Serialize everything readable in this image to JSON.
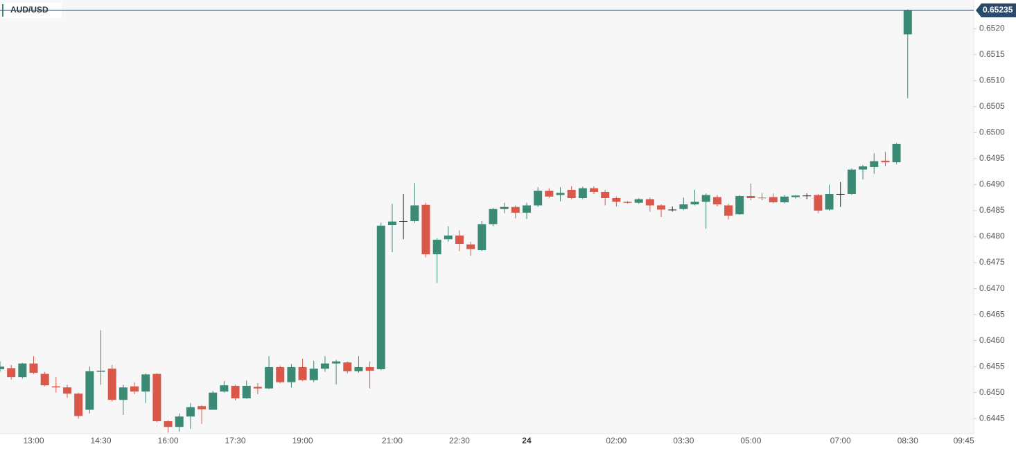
{
  "chart_data": {
    "type": "candlestick",
    "symbol": "AUD/USD",
    "last_price": 0.65235,
    "up_color": "#3a8a76",
    "down_color": "#d9584a",
    "doji_color": "#222222",
    "last_color": "#2b4a6b",
    "ylim": [
      0.64421,
      0.65255
    ],
    "yticks": [
      0.6445,
      {
        "value": 0.645,
        "label": "0.6450"
      },
      0.6455,
      {
        "value": 0.646,
        "label": "0.6460"
      },
      0.6465,
      {
        "value": 0.647,
        "label": "0.6470"
      },
      0.6475,
      {
        "value": 0.648,
        "label": "0.6480"
      },
      0.6485,
      {
        "value": 0.649,
        "label": "0.6490"
      },
      0.6495,
      {
        "value": 0.65,
        "label": "0.6500"
      },
      0.6505,
      {
        "value": 0.651,
        "label": "0.6510"
      },
      0.6515,
      {
        "value": 0.652,
        "label": "0.6520"
      }
    ],
    "categories": [
      null,
      null,
      null,
      "13:00",
      null,
      null,
      null,
      null,
      null,
      "14:30",
      null,
      null,
      null,
      null,
      null,
      "16:00",
      null,
      null,
      null,
      null,
      null,
      "17:30",
      null,
      null,
      null,
      null,
      null,
      "19:00",
      null,
      null,
      null,
      null,
      null,
      null,
      null,
      "21:00",
      null,
      null,
      null,
      null,
      null,
      "22:30",
      null,
      null,
      null,
      null,
      null,
      "24",
      null,
      null,
      null,
      null,
      null,
      null,
      null,
      "02:00",
      null,
      null,
      null,
      null,
      null,
      "03:30",
      null,
      null,
      null,
      null,
      null,
      "05:00",
      null,
      null,
      null,
      null,
      null,
      null,
      null,
      "07:00",
      null,
      null,
      null,
      null,
      null,
      "08:30",
      null,
      null,
      null,
      null,
      "09:45"
    ],
    "open": [
      0.64545,
      0.64547,
      0.6453,
      0.64556,
      0.64536,
      0.64512,
      0.6451,
      0.64498,
      0.64467,
      0.6454,
      0.64546,
      0.64486,
      0.64512,
      0.64502,
      0.64536,
      0.64445,
      0.64434,
      0.64454,
      0.64474,
      0.64467,
      0.64502,
      0.64513,
      0.64489,
      0.64511,
      0.64508,
      0.64549,
      0.6452,
      0.64549,
      0.64524,
      0.64546,
      0.64556,
      0.64558,
      0.64541,
      0.64549,
      0.64545,
      0.64822,
      0.6483,
      0.6483,
      0.64861,
      0.64766,
      0.64795,
      0.64802,
      0.64785,
      0.64774,
      0.64824,
      0.64853,
      0.64857,
      0.64846,
      0.6486,
      0.64888,
      0.6488,
      0.6489,
      0.64874,
      0.64893,
      0.64886,
      0.64874,
      0.64867,
      0.64865,
      0.64872,
      0.6486,
      0.64852,
      0.64853,
      0.64862,
      0.64867,
      0.64876,
      0.6486,
      0.64843,
      0.64878,
      0.64875,
      0.64876,
      0.64866,
      0.64876,
      0.64879,
      0.6488,
      0.64852,
      0.64882,
      0.64882,
      0.64929,
      0.64934,
      0.64946,
      0.64943,
      0.65189,
      null,
      null,
      null,
      null,
      null
    ],
    "high": [
      0.6456,
      0.64553,
      0.64557,
      0.6457,
      0.6454,
      0.6453,
      0.64515,
      0.645,
      0.6455,
      0.6462,
      0.64553,
      0.64515,
      0.6452,
      0.64537,
      0.64537,
      0.64447,
      0.6446,
      0.6448,
      0.64476,
      0.64503,
      0.64522,
      0.64515,
      0.64523,
      0.64518,
      0.6457,
      0.64552,
      0.64555,
      0.64565,
      0.64561,
      0.6457,
      0.64563,
      0.6456,
      0.6457,
      0.6456,
      0.64827,
      0.64863,
      0.64882,
      0.64903,
      0.64865,
      0.64797,
      0.6482,
      0.64812,
      0.6479,
      0.6483,
      0.64855,
      0.64865,
      0.6486,
      0.64865,
      0.64895,
      0.64893,
      0.64895,
      0.64897,
      0.64896,
      0.64897,
      0.6489,
      0.64877,
      0.64868,
      0.64874,
      0.64875,
      0.64862,
      0.64858,
      0.64875,
      0.6489,
      0.64883,
      0.6488,
      0.64863,
      0.6488,
      0.64902,
      0.64884,
      0.64883,
      0.6488,
      0.6488,
      0.64883,
      0.64882,
      0.649,
      0.64905,
      0.64931,
      0.64938,
      0.6496,
      0.64963,
      0.6498,
      0.65237,
      null,
      null,
      null,
      null,
      null
    ],
    "low": [
      0.6454,
      0.64525,
      0.64527,
      0.64536,
      0.64512,
      0.645,
      0.6449,
      0.6445,
      0.6446,
      0.64515,
      0.64483,
      0.64457,
      0.64497,
      0.6448,
      0.64443,
      0.64423,
      0.64425,
      0.6443,
      0.6444,
      0.64467,
      0.645,
      0.64485,
      0.64488,
      0.64497,
      0.64507,
      0.64518,
      0.6451,
      0.64522,
      0.6452,
      0.6454,
      0.64516,
      0.64537,
      0.64538,
      0.64508,
      0.64543,
      0.6477,
      0.64795,
      0.64826,
      0.6476,
      0.64711,
      0.6479,
      0.64772,
      0.64763,
      0.64772,
      0.6482,
      0.64845,
      0.64835,
      0.64834,
      0.64857,
      0.64874,
      0.64868,
      0.64872,
      0.64872,
      0.64882,
      0.6486,
      0.64858,
      0.64863,
      0.64863,
      0.64848,
      0.64838,
      0.64848,
      0.64851,
      0.6486,
      0.64815,
      0.64858,
      0.64833,
      0.64842,
      0.6487,
      0.6487,
      0.64864,
      0.64864,
      0.64873,
      0.64872,
      0.64845,
      0.6485,
      0.64857,
      0.6488,
      0.6491,
      0.64921,
      0.64935,
      0.6494,
      0.65066,
      null,
      null,
      null,
      null,
      null
    ],
    "close": [
      0.6455,
      0.6453,
      0.64556,
      0.64538,
      0.64514,
      0.6451,
      0.64498,
      0.64455,
      0.64541,
      0.64542,
      0.64486,
      0.6451,
      0.64502,
      0.64535,
      0.64445,
      0.64434,
      0.64454,
      0.64472,
      0.64468,
      0.645,
      0.64514,
      0.64489,
      0.64513,
      0.64508,
      0.64549,
      0.6452,
      0.64549,
      0.64524,
      0.64546,
      0.64556,
      0.6456,
      0.64541,
      0.64549,
      0.64542,
      0.64821,
      0.64829,
      0.6483,
      0.6486,
      0.64766,
      0.64794,
      0.64802,
      0.64786,
      0.64776,
      0.64824,
      0.64853,
      0.64857,
      0.64846,
      0.6486,
      0.64888,
      0.64877,
      0.64884,
      0.64874,
      0.64893,
      0.64886,
      0.64874,
      0.64867,
      0.64865,
      0.64872,
      0.6486,
      0.64852,
      0.64852,
      0.64862,
      0.64867,
      0.6488,
      0.64862,
      0.6484,
      0.64878,
      0.64874,
      0.64874,
      0.64866,
      0.64877,
      0.64879,
      0.64879,
      0.6485,
      0.64882,
      0.64882,
      0.64929,
      0.64935,
      0.64945,
      0.64943,
      0.64978,
      0.65235,
      null,
      null,
      null,
      null,
      null
    ]
  }
}
